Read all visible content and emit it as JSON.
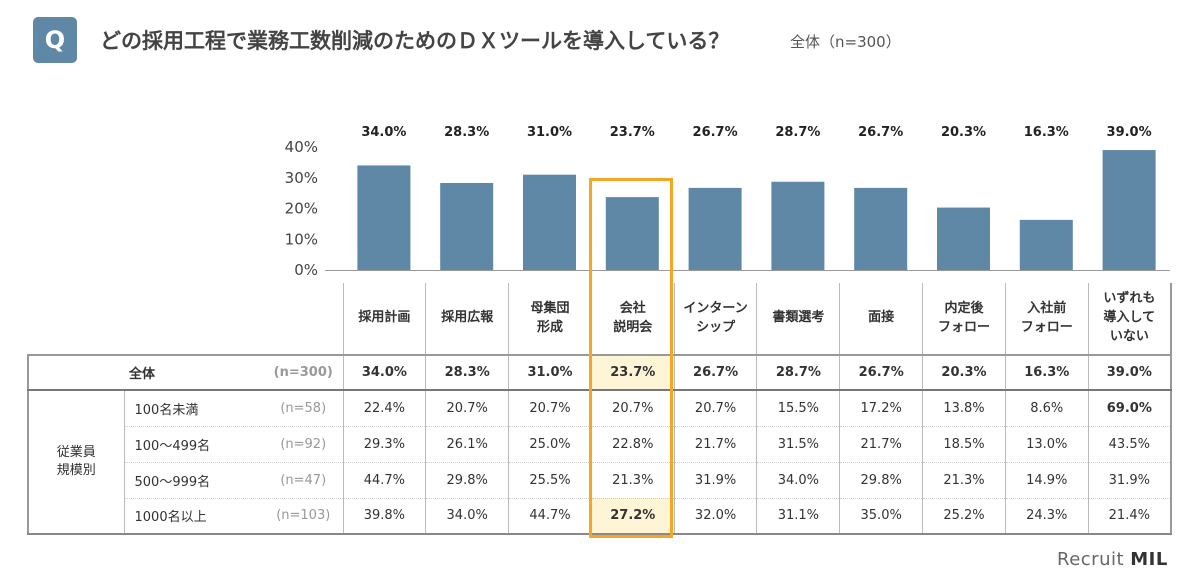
{
  "header": {
    "badge": "Q",
    "title": "どの採用工程で業務工数削減のためのＤＸツールを導入している？",
    "subtitle": "全体（n=300）"
  },
  "chart_data": {
    "type": "bar",
    "categories": [
      "採用計画",
      "採用広報",
      "母集団\n形成",
      "会社\n説明会",
      "インターン\nシップ",
      "書類選考",
      "面接",
      "内定後\nフォロー",
      "入社前\nフォロー",
      "いずれも\n導入して\nいない"
    ],
    "values": [
      34.0,
      28.3,
      31.0,
      23.7,
      26.7,
      28.7,
      26.7,
      20.3,
      16.3,
      39.0
    ],
    "data_labels": [
      "34.0%",
      "28.3%",
      "31.0%",
      "23.7%",
      "26.7%",
      "28.7%",
      "26.7%",
      "20.3%",
      "16.3%",
      "39.0%"
    ],
    "yticks": [
      "0%",
      "10%",
      "20%",
      "30%",
      "40%"
    ],
    "ylim": [
      0,
      40
    ],
    "bar_color": "#5f87a6",
    "highlight_color": "#f5a623",
    "highlight_category": "会社\n説明会",
    "grid": false
  },
  "table": {
    "total": {
      "label": "全体",
      "n": "(n=300)",
      "values": [
        "34.0%",
        "28.3%",
        "31.0%",
        "23.7%",
        "26.7%",
        "28.7%",
        "26.7%",
        "20.3%",
        "16.3%",
        "39.0%"
      ]
    },
    "group_label": "従業員\n規模別",
    "rows": [
      {
        "label": "100名未満",
        "n": "(n=58)",
        "values": [
          "22.4%",
          "20.7%",
          "20.7%",
          "20.7%",
          "20.7%",
          "15.5%",
          "17.2%",
          "13.8%",
          "8.6%",
          "69.0%"
        ],
        "bold": [
          9
        ]
      },
      {
        "label": "100〜499名",
        "n": "(n=92)",
        "values": [
          "29.3%",
          "26.1%",
          "25.0%",
          "22.8%",
          "21.7%",
          "31.5%",
          "21.7%",
          "18.5%",
          "13.0%",
          "43.5%"
        ],
        "bold": []
      },
      {
        "label": "500〜999名",
        "n": "(n=47)",
        "values": [
          "44.7%",
          "29.8%",
          "25.5%",
          "21.3%",
          "31.9%",
          "34.0%",
          "29.8%",
          "21.3%",
          "14.9%",
          "31.9%"
        ],
        "bold": []
      },
      {
        "label": "1000名以上",
        "n": "(n=103)",
        "values": [
          "39.8%",
          "34.0%",
          "44.7%",
          "27.2%",
          "32.0%",
          "31.1%",
          "35.0%",
          "25.2%",
          "24.3%",
          "21.4%"
        ],
        "bold": [
          3
        ],
        "highlight": [
          3
        ]
      }
    ]
  },
  "footer": {
    "logo": "Recruit MIL"
  }
}
